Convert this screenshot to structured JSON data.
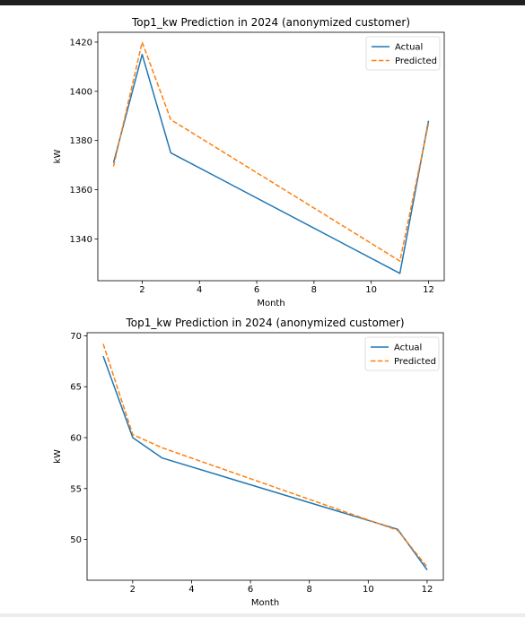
{
  "chart_data": [
    {
      "type": "line",
      "title": "Top1_kw Prediction in 2024 (anonymized customer)",
      "xlabel": "Month",
      "ylabel": "kW",
      "xlim": [
        0.45,
        12.55
      ],
      "ylim": [
        1323,
        1424
      ],
      "xticks": [
        2,
        4,
        6,
        8,
        10,
        12
      ],
      "yticks": [
        1340,
        1360,
        1380,
        1400,
        1420
      ],
      "legend": "top-right",
      "grid": false,
      "series": [
        {
          "name": "Actual",
          "color": "#1f77b4",
          "style": "solid",
          "x": [
            1,
            2,
            3,
            11,
            12
          ],
          "y": [
            1371,
            1415,
            1375,
            1326,
            1388
          ]
        },
        {
          "name": "Predicted",
          "color": "#ff7f0e",
          "style": "dashed",
          "x": [
            1,
            2,
            3,
            11,
            12
          ],
          "y": [
            1369.5,
            1420,
            1388.5,
            1331,
            1387
          ]
        }
      ]
    },
    {
      "type": "line",
      "title": "Top1_kw Prediction in 2024 (anonymized customer)",
      "xlabel": "Month",
      "ylabel": "kW",
      "xlim": [
        0.45,
        12.55
      ],
      "ylim": [
        46,
        70.3
      ],
      "xticks": [
        2,
        4,
        6,
        8,
        10,
        12
      ],
      "yticks": [
        50,
        55,
        60,
        65,
        70
      ],
      "legend": "top-right",
      "grid": false,
      "series": [
        {
          "name": "Actual",
          "color": "#1f77b4",
          "style": "solid",
          "x": [
            1,
            2,
            3,
            11,
            12
          ],
          "y": [
            68,
            60,
            58,
            51,
            47
          ]
        },
        {
          "name": "Predicted",
          "color": "#ff7f0e",
          "style": "dashed",
          "x": [
            1,
            2,
            3,
            11,
            12
          ],
          "y": [
            69.2,
            60.3,
            59,
            50.9,
            47.3
          ]
        }
      ]
    }
  ]
}
